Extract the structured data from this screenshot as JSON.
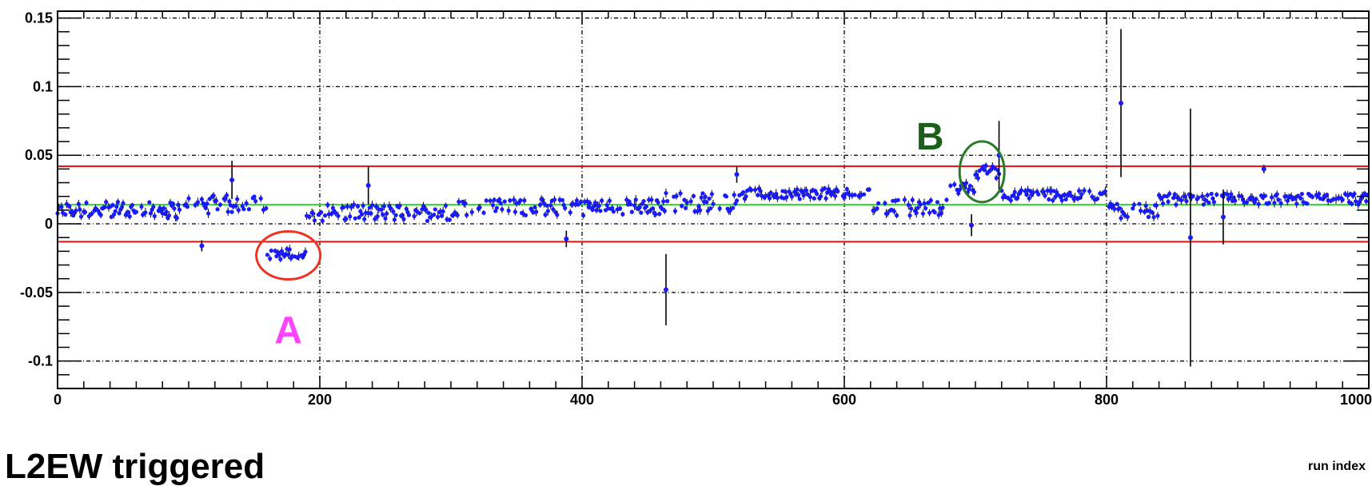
{
  "chart_data": {
    "type": "scatter",
    "xlabel": "run index",
    "ylabel": "",
    "xlim": [
      0,
      1000
    ],
    "ylim": [
      -0.12,
      0.155
    ],
    "xticks": [
      0,
      200,
      400,
      600,
      800,
      1000
    ],
    "yticks": [
      -0.1,
      -0.05,
      0,
      0.05,
      0.1,
      0.15
    ],
    "xtick_labels": [
      "0",
      "200",
      "400",
      "600",
      "800",
      "1000"
    ],
    "ytick_labels": [
      "-0.1",
      "-0.05",
      "0",
      "0.05",
      "0.1",
      "0.15"
    ],
    "grid": true,
    "series_color": "#1a1aff",
    "reference_lines": [
      {
        "y": 0.014,
        "color": "#33dd33",
        "style": "mean"
      },
      {
        "y": 0.042,
        "color": "#ee1111",
        "style": "upper band"
      },
      {
        "y": -0.013,
        "color": "#ee1111",
        "style": "lower band"
      }
    ],
    "outliers": [
      {
        "x": 110,
        "y": -0.016,
        "err": 0.004
      },
      {
        "x": 133,
        "y": 0.032,
        "err": 0.014
      },
      {
        "x": 237,
        "y": 0.028,
        "err": 0.014
      },
      {
        "x": 388,
        "y": -0.011,
        "err": 0.006
      },
      {
        "x": 464,
        "y": -0.048,
        "err": 0.026
      },
      {
        "x": 518,
        "y": 0.036,
        "err": 0.006
      },
      {
        "x": 697,
        "y": -0.001,
        "err": 0.008
      },
      {
        "x": 718,
        "y": 0.05,
        "err": 0.025
      },
      {
        "x": 811,
        "y": 0.088,
        "err": 0.054
      },
      {
        "x": 864,
        "y": -0.01,
        "err": 0.094
      },
      {
        "x": 889,
        "y": 0.005,
        "err": 0.02
      },
      {
        "x": 920,
        "y": 0.04,
        "err": 0.003
      }
    ],
    "clusters": [
      {
        "x": [
          0,
          100
        ],
        "y": 0.01,
        "spread": 0.006
      },
      {
        "x": [
          100,
          160
        ],
        "y": 0.014,
        "spread": 0.007
      },
      {
        "x": [
          160,
          190
        ],
        "y": -0.022,
        "spread": 0.004
      },
      {
        "x": [
          190,
          300
        ],
        "y": 0.008,
        "spread": 0.006
      },
      {
        "x": [
          300,
          460
        ],
        "y": 0.012,
        "spread": 0.006
      },
      {
        "x": [
          460,
          520
        ],
        "y": 0.016,
        "spread": 0.007
      },
      {
        "x": [
          520,
          620
        ],
        "y": 0.022,
        "spread": 0.004
      },
      {
        "x": [
          620,
          680
        ],
        "y": 0.012,
        "spread": 0.006
      },
      {
        "x": [
          680,
          700
        ],
        "y": 0.026,
        "spread": 0.004
      },
      {
        "x": [
          700,
          720
        ],
        "y": 0.038,
        "spread": 0.005
      },
      {
        "x": [
          720,
          800
        ],
        "y": 0.021,
        "spread": 0.004
      },
      {
        "x": [
          800,
          840
        ],
        "y": 0.01,
        "spread": 0.006
      },
      {
        "x": [
          840,
          920
        ],
        "y": 0.018,
        "spread": 0.004
      },
      {
        "x": [
          920,
          1000
        ],
        "y": 0.018,
        "spread": 0.004
      }
    ],
    "annotations": [
      {
        "label": "A",
        "color": "#ff44ff",
        "x": 176,
        "y": -0.023,
        "ring_color": "#ee3322"
      },
      {
        "label": "B",
        "color": "#1a5f1a",
        "x": 705,
        "y": 0.038,
        "ring_color": "#2a7a2a"
      }
    ],
    "title": "L2EW triggered"
  }
}
